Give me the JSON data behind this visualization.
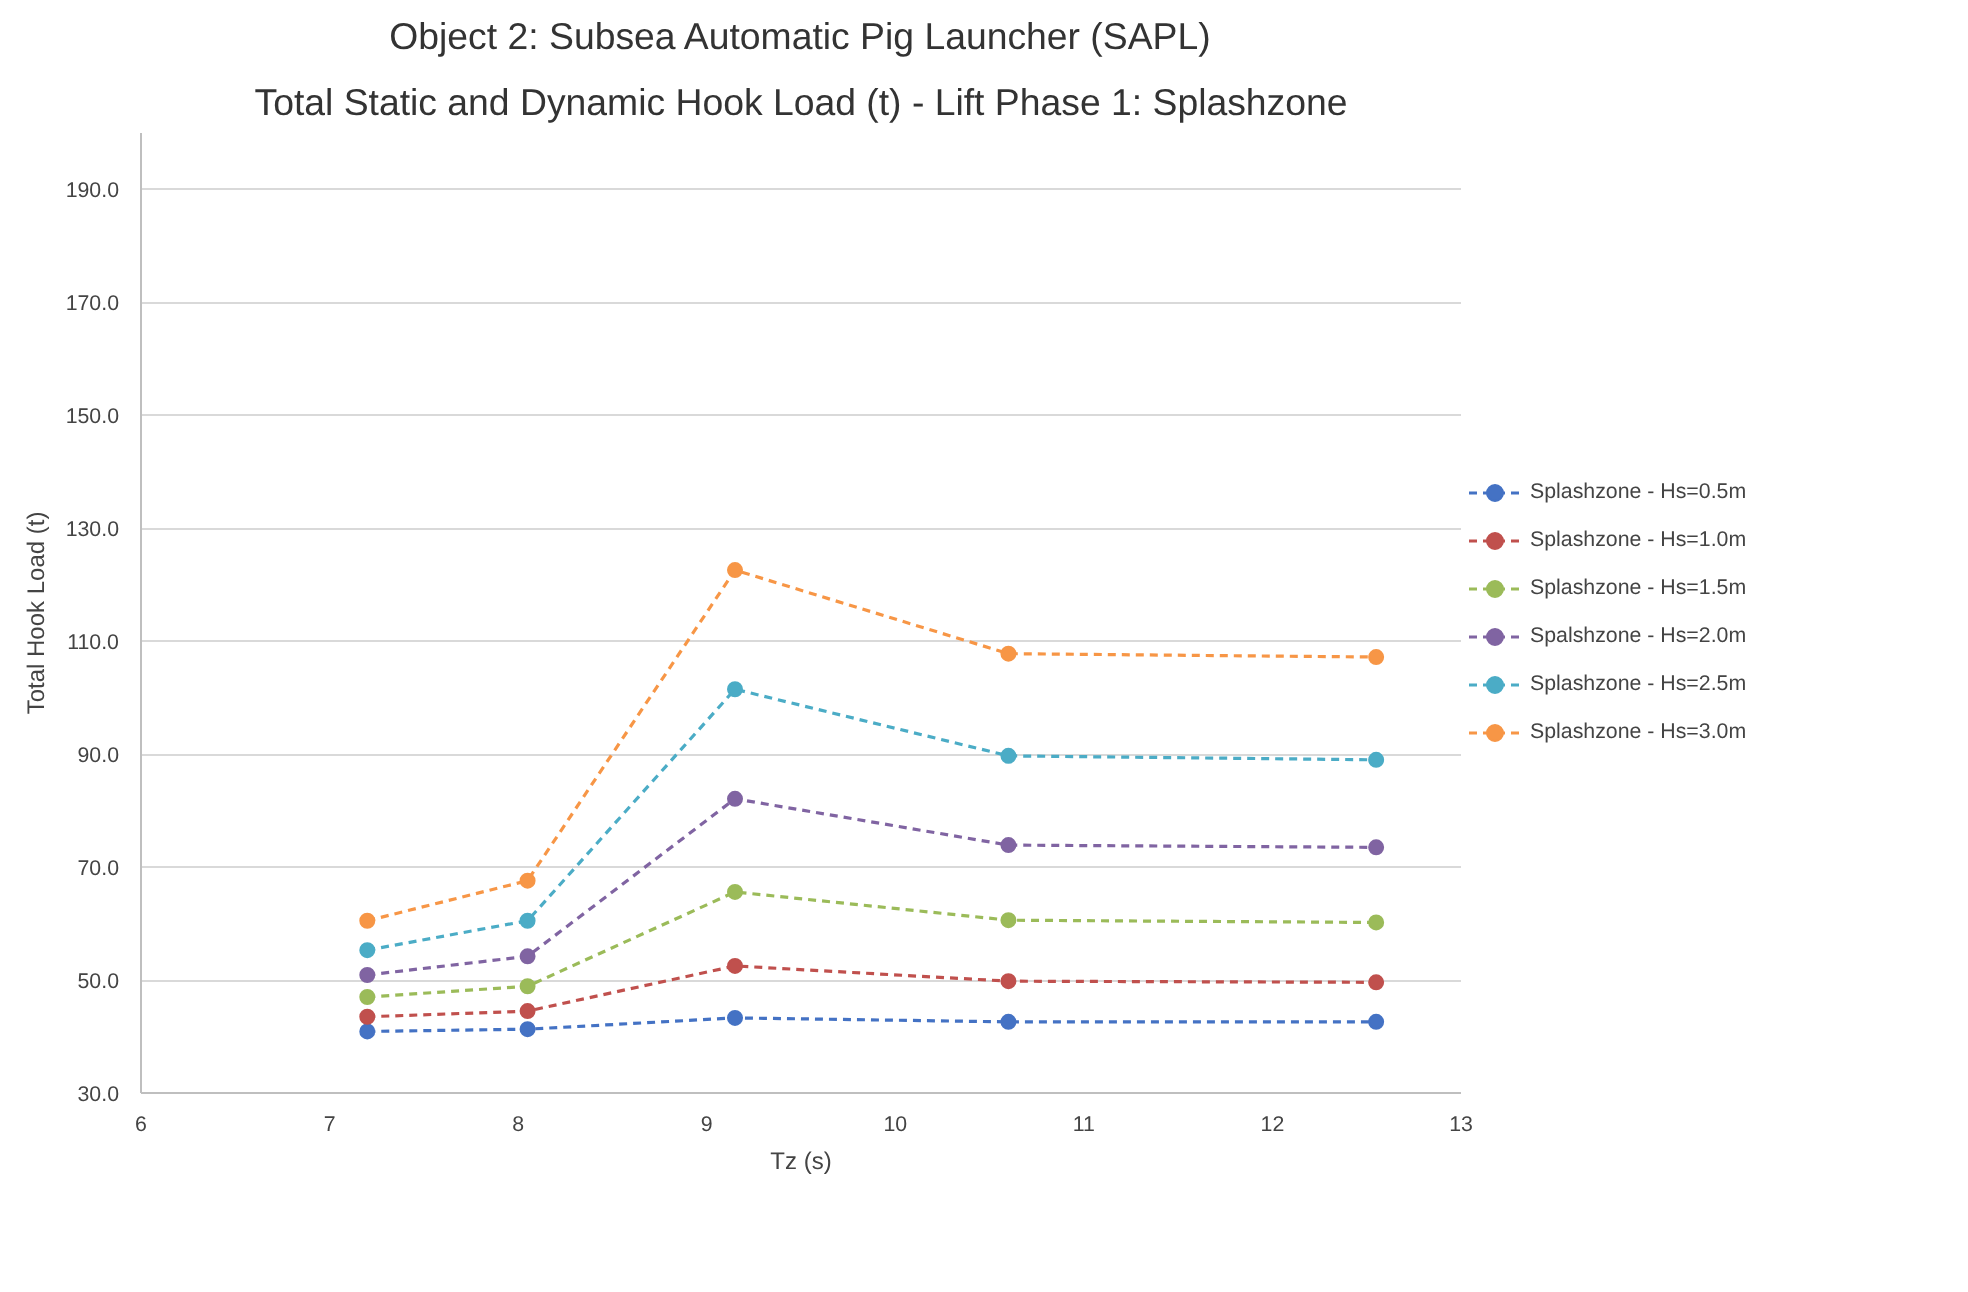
{
  "chart_data": {
    "type": "line",
    "title": "Object 2: Subsea Automatic Pig Launcher (SAPL)",
    "subtitle": "Total Static and Dynamic Hook Load (t) - Lift Phase 1: Splashzone",
    "xlabel": "Tz (s)",
    "ylabel": "Total Hook Load (t)",
    "x": [
      7.2,
      8.05,
      9.15,
      10.6,
      12.55
    ],
    "series": [
      {
        "name": "Splashzone - Hs=0.5m",
        "color": "#4472c4",
        "values": [
          40.9,
          41.3,
          43.3,
          42.6,
          42.6
        ]
      },
      {
        "name": "Splashzone - Hs=1.0m",
        "color": "#c0504d",
        "values": [
          43.5,
          44.5,
          52.5,
          49.8,
          49.6
        ]
      },
      {
        "name": "Splashzone - Hs=1.5m",
        "color": "#9bbb59",
        "values": [
          47.0,
          48.9,
          65.6,
          60.6,
          60.2
        ]
      },
      {
        "name": "Spalshzone - Hs=2.0m",
        "color": "#8064a2",
        "values": [
          50.9,
          54.2,
          82.1,
          73.9,
          73.5
        ]
      },
      {
        "name": "Splashzone - Hs=2.5m",
        "color": "#4bacc6",
        "values": [
          55.3,
          60.5,
          101.5,
          89.7,
          89.0
        ]
      },
      {
        "name": "Splashzone - Hs=3.0m",
        "color": "#f79646",
        "values": [
          60.5,
          67.6,
          122.6,
          107.8,
          107.2
        ]
      }
    ],
    "xlim": [
      6,
      13
    ],
    "ylim": [
      30,
      200
    ],
    "xticks": [
      6,
      7,
      8,
      9,
      10,
      11,
      12,
      13
    ],
    "yticks": [
      {
        "value": 30,
        "label": "30.0"
      },
      {
        "value": 50,
        "label": "50.0"
      },
      {
        "value": 70,
        "label": "70.0"
      },
      {
        "value": 90,
        "label": "90.0"
      },
      {
        "value": 110,
        "label": "110.0"
      },
      {
        "value": 130,
        "label": "130.0"
      },
      {
        "value": 150,
        "label": "150.0"
      },
      {
        "value": 170,
        "label": "170.0"
      },
      {
        "value": 190,
        "label": "190.0"
      }
    ],
    "grid": "y",
    "legend": "right",
    "marker": "circle",
    "line_style": "dashed"
  }
}
